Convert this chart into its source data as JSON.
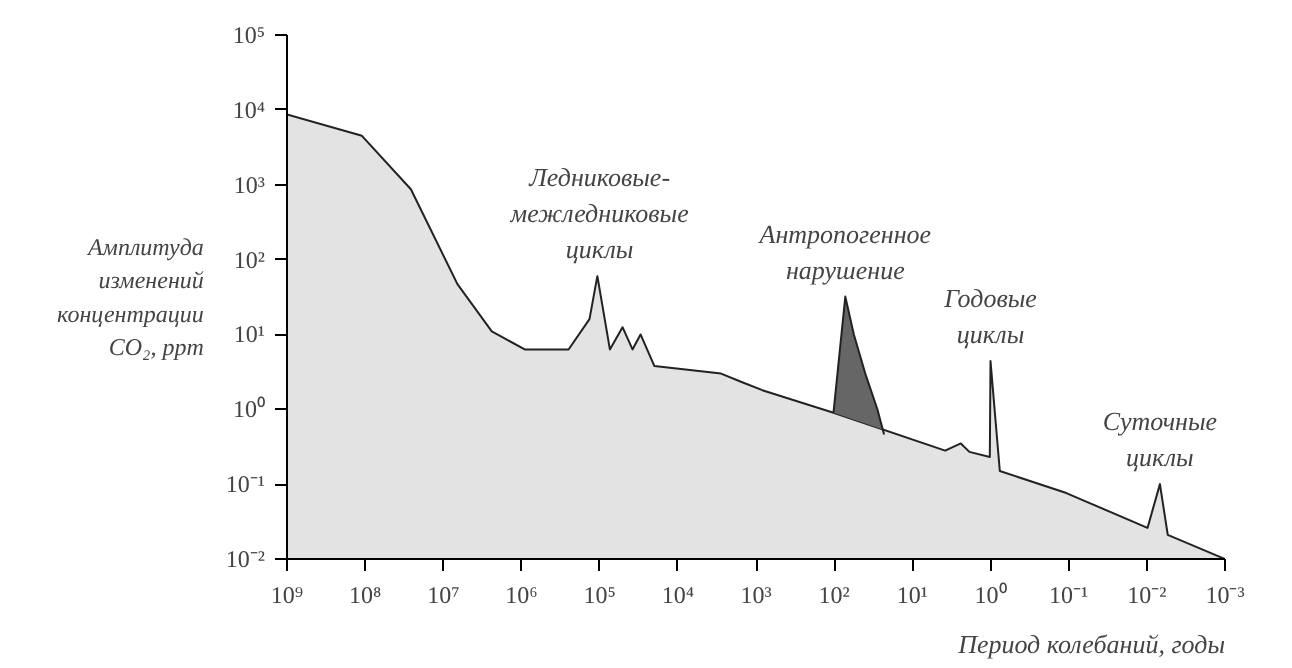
{
  "chart_data": {
    "type": "area",
    "xlabel": "Период колебаний, годы",
    "ylabel": "Амплитуда изменений концентрации CO₂, ppm",
    "log": "xy",
    "grid": false,
    "xlim": [
      1000000000.0,
      0.001
    ],
    "ylim": [
      0.01,
      100000
    ],
    "xticks": [
      {
        "value": 1000000000.0,
        "label": "10⁹"
      },
      {
        "value": 100000000.0,
        "label": "10⁸"
      },
      {
        "value": 10000000.0,
        "label": "10⁷"
      },
      {
        "value": 1000000.0,
        "label": "10⁶"
      },
      {
        "value": 100000.0,
        "label": "10⁵"
      },
      {
        "value": 10000.0,
        "label": "10⁴"
      },
      {
        "value": 1000,
        "label": "10³"
      },
      {
        "value": 100,
        "label": "10²"
      },
      {
        "value": 10,
        "label": "10¹"
      },
      {
        "value": 1,
        "label": "10⁰"
      },
      {
        "value": 0.1,
        "label": "10⁻¹"
      },
      {
        "value": 0.01,
        "label": "10⁻²"
      },
      {
        "value": 0.001,
        "label": "10⁻³"
      }
    ],
    "yticks": [
      {
        "value": 0.01,
        "label": "10⁻²"
      },
      {
        "value": 0.1,
        "label": "10⁻¹"
      },
      {
        "value": 1,
        "label": "10⁰"
      },
      {
        "value": 10,
        "label": "10¹"
      },
      {
        "value": 100,
        "label": "10²"
      },
      {
        "value": 1000,
        "label": "10³"
      },
      {
        "value": 10000,
        "label": "10⁴"
      },
      {
        "value": 100000,
        "label": "10⁵"
      }
    ],
    "series": [
      {
        "color": "#e3e3e3",
        "x": [
          1000000000.0,
          110000000.0,
          26000000.0,
          6600000.0,
          2400000.0,
          910000.0,
          250000.0,
          135000.0,
          107000.0,
          74000.0,
          51000.0,
          38000.0,
          30000.0,
          20000.0,
          2800.0,
          1500.0,
          830,
          102,
          3.8,
          2.4,
          1.86,
          1.02,
          1.0,
          0.76,
          0.107,
          0.0098,
          0.0068,
          0.0054,
          0.001
        ],
        "values": [
          8700,
          4500,
          870,
          47,
          11,
          6.3,
          6.3,
          16,
          60,
          6.3,
          12.5,
          6.3,
          10,
          3.8,
          3,
          2.3,
          1.8,
          0.9,
          0.28,
          0.35,
          0.27,
          0.23,
          4.4,
          0.15,
          0.076,
          0.026,
          0.1,
          0.021,
          0.01
        ]
      },
      {
        "type": "area",
        "color": "#666666",
        "x": [
          102,
          72,
          56,
          40,
          28,
          23
        ],
        "values": [
          0.9,
          32,
          10,
          3,
          1,
          0.46
        ]
      }
    ],
    "annotations": [
      {
        "text": "Ледниковые-межледниковые циклы",
        "x": 100000,
        "y": 60
      },
      {
        "text": "Антропогенное нарушение",
        "x": 72,
        "y": 32
      },
      {
        "text": "Годовые циклы",
        "x": 1,
        "y": 4.4
      },
      {
        "text": "Суточные циклы",
        "x": 0.0068,
        "y": 0.1
      }
    ]
  }
}
